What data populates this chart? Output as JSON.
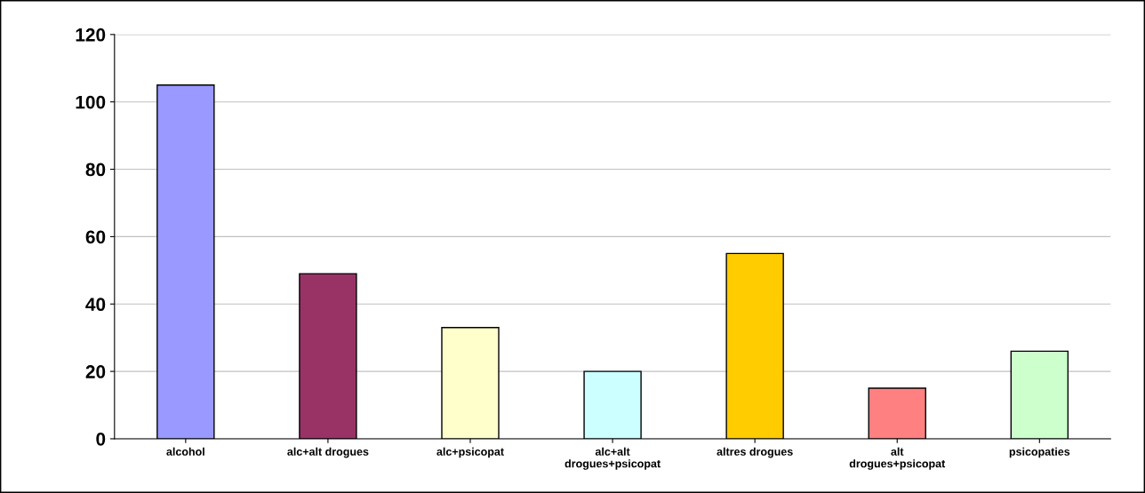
{
  "chart_data": {
    "type": "bar",
    "categories": [
      "alcohol",
      "alc+alt drogues",
      "alc+psicopat",
      "alc+alt drogues+psicopat",
      "altres drogues",
      "alt drogues+psicopat",
      "psicopaties"
    ],
    "values": [
      105,
      49,
      33,
      20,
      55,
      15,
      26
    ],
    "colors": [
      "#9999ff",
      "#993366",
      "#ffffcc",
      "#ccffff",
      "#ffcc00",
      "#ff8080",
      "#ccffcc"
    ],
    "ylim": [
      0,
      120
    ],
    "yticks": [
      0,
      20,
      40,
      60,
      80,
      100,
      120
    ],
    "grid": "y"
  }
}
